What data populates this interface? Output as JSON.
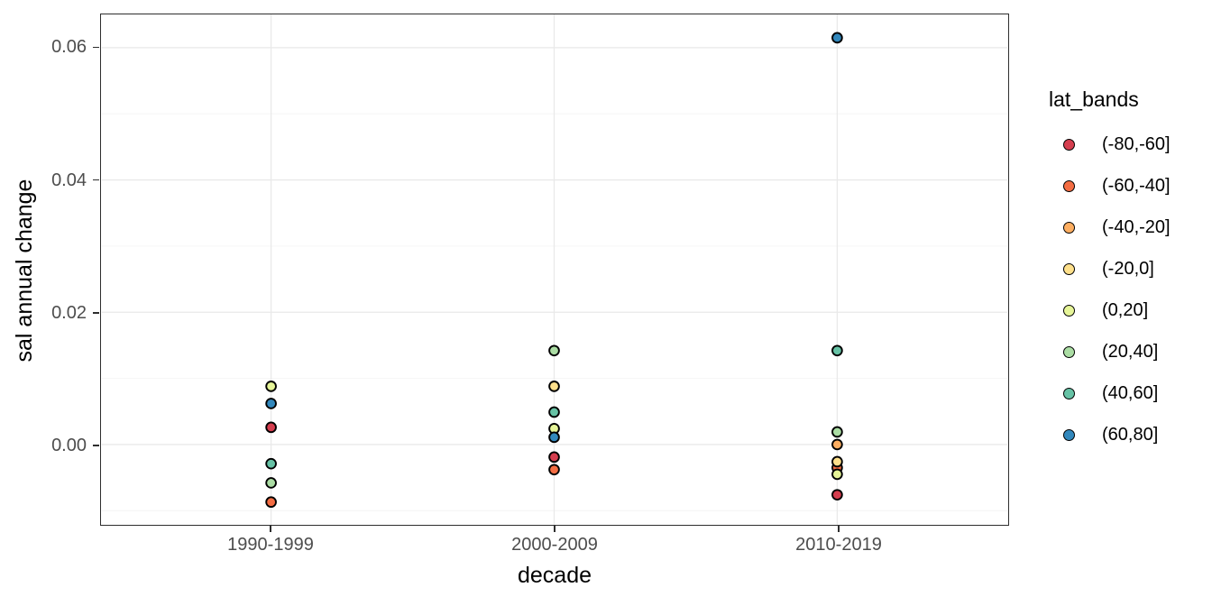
{
  "chart_data": {
    "type": "scatter",
    "title": "",
    "xlabel": "decade",
    "ylabel": "sal annual change",
    "legend_title": "lat_bands",
    "legend_position": "right",
    "grid": true,
    "categories": [
      "1990-1999",
      "2000-2009",
      "2010-2019"
    ],
    "y_tick_labels": [
      "0.00",
      "0.02",
      "0.04",
      "0.06"
    ],
    "y_tick_values": [
      0.0,
      0.02,
      0.04,
      0.06
    ],
    "y_minor_values": [
      -0.01,
      0.01,
      0.03,
      0.05
    ],
    "ylim": [
      -0.0121,
      0.0651
    ],
    "series": [
      {
        "name": "(-80,-60]",
        "color": "#D53E4F",
        "values": [
          0.0026,
          -0.0019,
          -0.0076
        ]
      },
      {
        "name": "(-60,-40]",
        "color": "#F46D43",
        "values": [
          -0.0087,
          -0.0038,
          -0.0035
        ]
      },
      {
        "name": "(-40,-20]",
        "color": "#FDAE61",
        "values": [
          null,
          null,
          0.0
        ]
      },
      {
        "name": "(-20,0]",
        "color": "#FEE08B",
        "values": [
          null,
          0.0088,
          -0.0026
        ]
      },
      {
        "name": "(0,20]",
        "color": "#E6F598",
        "values": [
          0.0088,
          0.0024,
          -0.0045
        ]
      },
      {
        "name": "(20,40]",
        "color": "#ABDDA4",
        "values": [
          -0.0058,
          0.0142,
          0.0019
        ]
      },
      {
        "name": "(40,60]",
        "color": "#66C2A5",
        "values": [
          -0.0029,
          0.0049,
          0.0142
        ]
      },
      {
        "name": "(60,80]",
        "color": "#3288BD",
        "values": [
          0.0062,
          0.0011,
          0.0615
        ]
      }
    ],
    "colors": {
      "background": "#ffffff",
      "panel_border": "#2e2e2e",
      "grid_major": "#e9e9e9",
      "grid_minor": "#f4f4f4",
      "tick_text": "#4d4d4d",
      "point_stroke": "#000000"
    }
  }
}
